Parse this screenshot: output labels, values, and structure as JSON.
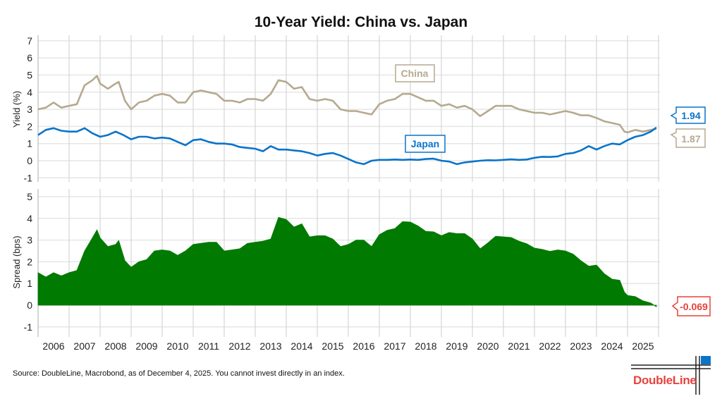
{
  "chart_data": [
    {
      "type": "line",
      "title": "10-Year Yield: China vs. Japan",
      "ylabel": "Yield (%)",
      "ylim": [
        -1,
        7
      ],
      "yticks": [
        -1,
        0,
        1,
        2,
        3,
        4,
        5,
        6,
        7
      ],
      "grid": true,
      "series": [
        {
          "name": "China",
          "color": "#b5a98f",
          "end_label": "1.87",
          "x": [
            2006.0,
            2006.25,
            2006.5,
            2006.75,
            2007.0,
            2007.25,
            2007.5,
            2007.75,
            2007.9,
            2008.0,
            2008.25,
            2008.5,
            2008.6,
            2008.8,
            2009.0,
            2009.25,
            2009.5,
            2009.75,
            2010.0,
            2010.25,
            2010.5,
            2010.75,
            2011.0,
            2011.25,
            2011.5,
            2011.75,
            2012.0,
            2012.25,
            2012.5,
            2012.75,
            2013.0,
            2013.25,
            2013.5,
            2013.75,
            2014.0,
            2014.25,
            2014.5,
            2014.75,
            2015.0,
            2015.25,
            2015.5,
            2015.75,
            2016.0,
            2016.25,
            2016.5,
            2016.75,
            2017.0,
            2017.25,
            2017.5,
            2017.75,
            2018.0,
            2018.25,
            2018.5,
            2018.75,
            2019.0,
            2019.25,
            2019.5,
            2019.75,
            2020.0,
            2020.25,
            2020.5,
            2020.75,
            2021.0,
            2021.25,
            2021.5,
            2021.75,
            2022.0,
            2022.25,
            2022.5,
            2022.75,
            2023.0,
            2023.25,
            2023.5,
            2023.75,
            2024.0,
            2024.25,
            2024.5,
            2024.75,
            2024.9,
            2025.0,
            2025.25,
            2025.5,
            2025.75,
            2025.93
          ],
          "y": [
            3.0,
            3.1,
            3.4,
            3.1,
            3.2,
            3.3,
            4.4,
            4.7,
            4.95,
            4.5,
            4.2,
            4.5,
            4.6,
            3.5,
            3.0,
            3.4,
            3.5,
            3.8,
            3.9,
            3.8,
            3.4,
            3.4,
            4.0,
            4.1,
            4.0,
            3.9,
            3.5,
            3.5,
            3.4,
            3.6,
            3.6,
            3.5,
            3.9,
            4.7,
            4.6,
            4.2,
            4.3,
            3.6,
            3.5,
            3.6,
            3.5,
            3.0,
            2.9,
            2.9,
            2.8,
            2.7,
            3.3,
            3.5,
            3.6,
            3.9,
            3.9,
            3.7,
            3.5,
            3.5,
            3.2,
            3.3,
            3.1,
            3.2,
            3.0,
            2.6,
            2.9,
            3.2,
            3.2,
            3.2,
            3.0,
            2.9,
            2.8,
            2.8,
            2.7,
            2.8,
            2.9,
            2.8,
            2.65,
            2.65,
            2.5,
            2.3,
            2.2,
            2.1,
            1.7,
            1.65,
            1.8,
            1.7,
            1.8,
            1.87
          ]
        },
        {
          "name": "Japan",
          "color": "#0a74c9",
          "end_label": "1.94",
          "x": [
            2006.0,
            2006.25,
            2006.5,
            2006.75,
            2007.0,
            2007.25,
            2007.5,
            2007.75,
            2008.0,
            2008.25,
            2008.5,
            2008.75,
            2009.0,
            2009.25,
            2009.5,
            2009.75,
            2010.0,
            2010.25,
            2010.5,
            2010.75,
            2011.0,
            2011.25,
            2011.5,
            2011.75,
            2012.0,
            2012.25,
            2012.5,
            2012.75,
            2013.0,
            2013.25,
            2013.5,
            2013.75,
            2014.0,
            2014.25,
            2014.5,
            2014.75,
            2015.0,
            2015.25,
            2015.5,
            2015.75,
            2016.0,
            2016.25,
            2016.5,
            2016.75,
            2017.0,
            2017.25,
            2017.5,
            2017.75,
            2018.0,
            2018.25,
            2018.5,
            2018.75,
            2019.0,
            2019.25,
            2019.5,
            2019.75,
            2020.0,
            2020.25,
            2020.5,
            2020.75,
            2021.0,
            2021.25,
            2021.5,
            2021.75,
            2022.0,
            2022.25,
            2022.5,
            2022.75,
            2023.0,
            2023.25,
            2023.5,
            2023.75,
            2024.0,
            2024.25,
            2024.5,
            2024.75,
            2025.0,
            2025.25,
            2025.5,
            2025.75,
            2025.93
          ],
          "y": [
            1.5,
            1.8,
            1.9,
            1.75,
            1.7,
            1.7,
            1.9,
            1.6,
            1.4,
            1.5,
            1.7,
            1.5,
            1.25,
            1.4,
            1.4,
            1.3,
            1.35,
            1.3,
            1.1,
            0.9,
            1.2,
            1.25,
            1.1,
            1.0,
            1.0,
            0.95,
            0.8,
            0.75,
            0.7,
            0.55,
            0.85,
            0.65,
            0.65,
            0.6,
            0.55,
            0.45,
            0.3,
            0.4,
            0.45,
            0.3,
            0.1,
            -0.1,
            -0.2,
            0.0,
            0.05,
            0.05,
            0.07,
            0.05,
            0.07,
            0.05,
            0.1,
            0.12,
            0.0,
            -0.05,
            -0.2,
            -0.1,
            -0.05,
            0.0,
            0.03,
            0.02,
            0.05,
            0.08,
            0.05,
            0.07,
            0.17,
            0.23,
            0.22,
            0.25,
            0.4,
            0.45,
            0.6,
            0.85,
            0.65,
            0.85,
            1.0,
            0.95,
            1.2,
            1.4,
            1.5,
            1.7,
            1.94
          ]
        }
      ]
    },
    {
      "type": "area",
      "ylabel": "Spread (bps)",
      "ylim": [
        -1,
        5
      ],
      "yticks": [
        -1,
        0,
        1,
        2,
        3,
        4,
        5
      ],
      "grid": true,
      "color": "#007a00",
      "series": [
        {
          "derived_from": "China minus Japan",
          "end_label": "-0.069",
          "end_label_color": "#e8413c"
        }
      ],
      "xticks": [
        "2006",
        "2007",
        "2008",
        "2009",
        "2010",
        "2011",
        "2012",
        "2013",
        "2014",
        "2015",
        "2016",
        "2017",
        "2018",
        "2019",
        "2020",
        "2021",
        "2022",
        "2023",
        "2024",
        "2025"
      ],
      "xlim": [
        2006,
        2026
      ]
    }
  ],
  "footer": {
    "source": "Source: DoubleLine, Macrobond, as of December 4, 2025. You cannot invest directly in an index.",
    "logo_text": "DoubleLine",
    "logo_blue": "#0a74c9"
  }
}
